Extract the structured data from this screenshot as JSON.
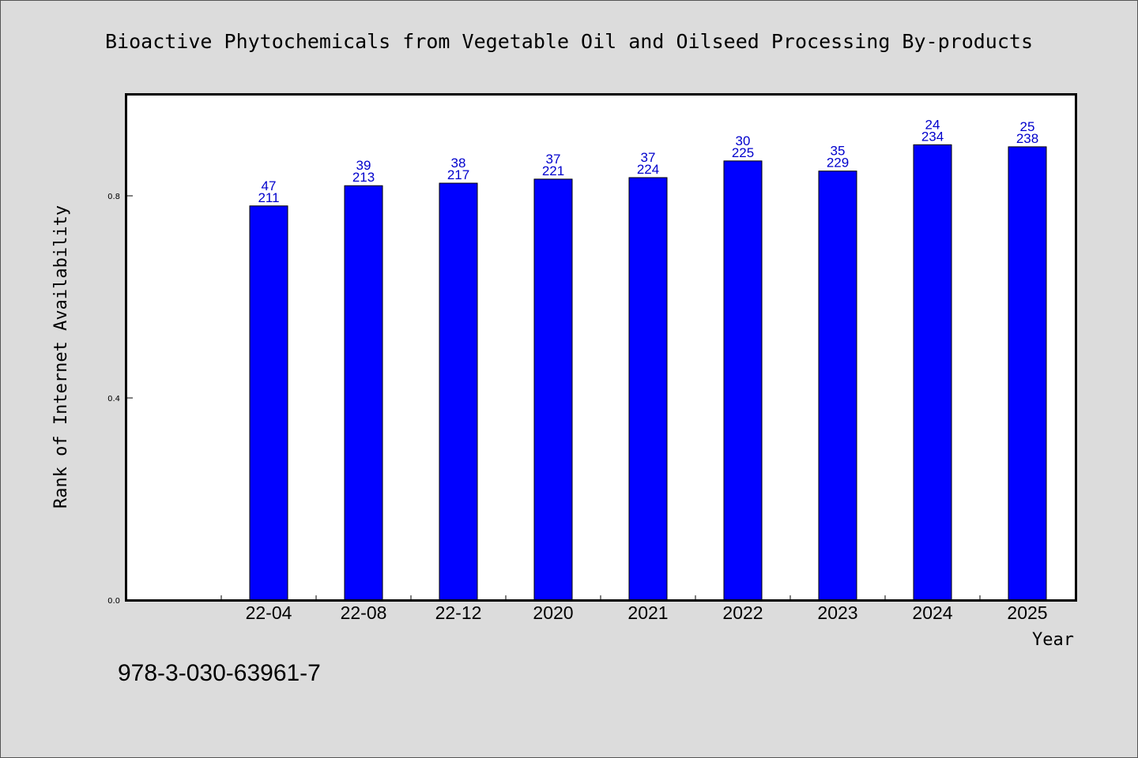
{
  "chart_data": {
    "type": "bar",
    "title": "Bioactive Phytochemicals from Vegetable Oil and Oilseed Processing By-products",
    "xlabel": "Year",
    "ylabel": "Rank of Internet Availability",
    "categories": [
      "22-04",
      "22-08",
      "22-12",
      "2020",
      "2021",
      "2022",
      "2023",
      "2024",
      "2025"
    ],
    "values": [
      0.78,
      0.82,
      0.825,
      0.833,
      0.836,
      0.869,
      0.849,
      0.901,
      0.897
    ],
    "labels_top": [
      "47",
      "39",
      "38",
      "37",
      "37",
      "30",
      "35",
      "24",
      "25"
    ],
    "labels_bottom": [
      "211",
      "213",
      "217",
      "221",
      "224",
      "225",
      "229",
      "234",
      "238"
    ],
    "ylim": [
      0,
      1.0
    ],
    "yticks": [
      "0.0",
      "0.4",
      "0.8"
    ],
    "ytick_values": [
      0.0,
      0.4,
      0.8
    ],
    "grid": false,
    "bar_color": "#0000ff",
    "label_color": "#0000cc"
  },
  "footer": {
    "isbn": "978-3-030-63961-7"
  },
  "colors": {
    "background": "#dcdcdc",
    "plot_background": "#ffffff"
  }
}
